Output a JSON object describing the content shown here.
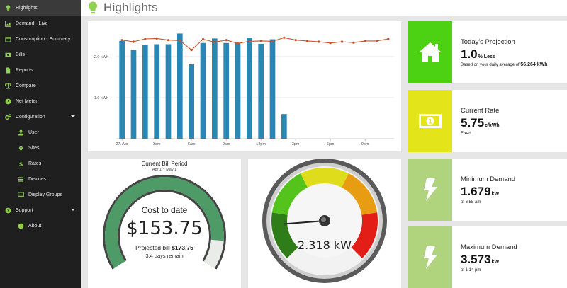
{
  "colors": {
    "sidebar_bg": "#1f1f1f",
    "accent_green": "#8fd14f",
    "bar_blue": "#2a87b3",
    "line_orange": "#c7532b",
    "projection_green": "#4cd113",
    "rate_yellow": "#e4e41b",
    "demand_green": "#b0d47e",
    "bill_green": "#4f9b68"
  },
  "sidebar": {
    "items": [
      {
        "label": "Highlights",
        "icon": "lightbulb-icon"
      },
      {
        "label": "Demand - Live",
        "icon": "area-chart-icon"
      },
      {
        "label": "Consumption - Summary",
        "icon": "calendar-icon"
      },
      {
        "label": "Bills",
        "icon": "money-icon"
      },
      {
        "label": "Reports",
        "icon": "file-icon"
      },
      {
        "label": "Compare",
        "icon": "scale-icon"
      },
      {
        "label": "Net Meter",
        "icon": "power-icon"
      },
      {
        "label": "Configuration",
        "icon": "cogs-icon"
      },
      {
        "label": "User",
        "icon": "user-icon"
      },
      {
        "label": "Sites",
        "icon": "map-marker-icon"
      },
      {
        "label": "Rates",
        "icon": "dollar-icon"
      },
      {
        "label": "Devices",
        "icon": "bars-icon"
      },
      {
        "label": "Display Groups",
        "icon": "monitor-icon"
      },
      {
        "label": "Support",
        "icon": "question-icon"
      },
      {
        "label": "About",
        "icon": "info-icon"
      }
    ]
  },
  "header": {
    "title": "Highlights",
    "icon": "lightbulb-icon"
  },
  "chart_data": {
    "type": "bar",
    "title": "",
    "ylabel": "",
    "yticks": [
      "1.0 kWh",
      "2.0 kWh"
    ],
    "ylim": [
      0,
      2.55
    ],
    "xticks": [
      "27. Apr",
      "3am",
      "6am",
      "9am",
      "12pm",
      "3pm",
      "6pm",
      "9pm"
    ],
    "hours": [
      "0",
      "1",
      "2",
      "3",
      "4",
      "5",
      "6",
      "7",
      "8",
      "9",
      "10",
      "11",
      "12",
      "13",
      "14",
      "15",
      "16",
      "17",
      "18",
      "19",
      "20",
      "21",
      "22",
      "23"
    ],
    "series": [
      {
        "type": "bar",
        "values": [
          2.38,
          2.16,
          2.28,
          2.3,
          2.3,
          2.56,
          1.81,
          2.33,
          2.44,
          2.33,
          2.33,
          2.46,
          2.31,
          2.42,
          0.6
        ]
      },
      {
        "type": "line",
        "values": [
          2.4,
          2.36,
          2.43,
          2.44,
          2.4,
          2.39,
          2.16,
          2.42,
          2.35,
          2.4,
          2.32,
          2.37,
          2.38,
          2.37,
          2.46,
          2.4,
          2.38,
          2.36,
          2.33,
          2.36,
          2.34,
          2.38,
          2.38,
          2.43
        ]
      }
    ],
    "grid": true
  },
  "bill": {
    "title": "Current Bill Period",
    "range": "Apr 1 ~ May 1",
    "cost_label": "Cost to date",
    "cost_value": "$153.75",
    "projected_label": "Projected bill",
    "projected_value": "$173.75",
    "remaining": "3.4 days remain",
    "progress_fraction": 0.885
  },
  "gauge": {
    "value_text": "2.318 kW",
    "value": 2.318,
    "needle_fraction": 0.15
  },
  "stats": [
    {
      "label": "Today's Projection",
      "value": "1.0",
      "unit": "% Less",
      "note_prefix": "Based on your daily average of ",
      "note_bold": "56.264 kWh",
      "icon": "home-icon"
    },
    {
      "label": "Current Rate",
      "value": "5.75",
      "unit": "c/kWh",
      "note_prefix": "Fixed",
      "note_bold": "",
      "icon": "money-icon"
    },
    {
      "label": "Minimum Demand",
      "value": "1.679",
      "unit": "kW",
      "note_prefix": "at 6:55 am",
      "note_bold": "",
      "icon": "bolt-icon"
    },
    {
      "label": "Maximum Demand",
      "value": "3.573",
      "unit": "kW",
      "note_prefix": "at 1:14 pm",
      "note_bold": "",
      "icon": "bolt-icon"
    }
  ]
}
